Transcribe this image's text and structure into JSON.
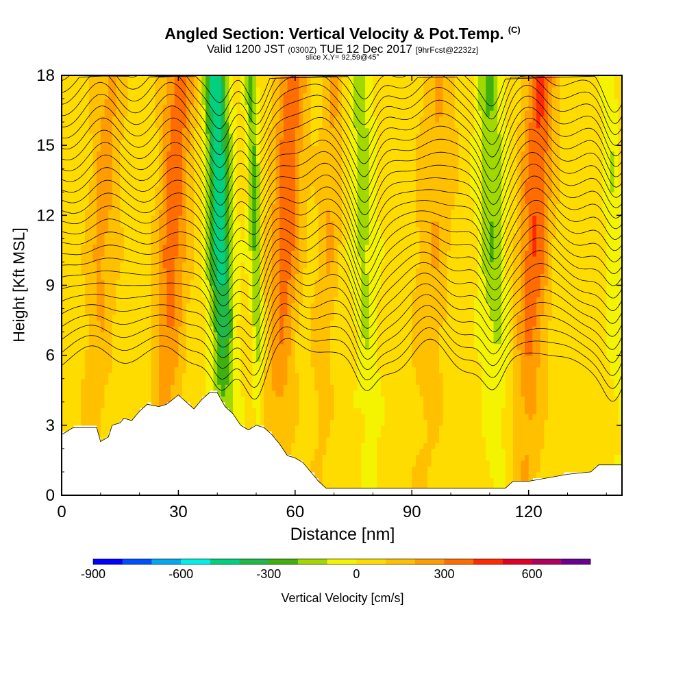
{
  "chart_data": {
    "type": "heatmap",
    "title": "Angled Section: Vertical Velocity & Pot.Temp.",
    "title_unit": "(C)",
    "subtitle_main": "Valid 1200 JST",
    "subtitle_utc": "(0300Z)",
    "subtitle_date": "TUE 12 Dec 2017",
    "subtitle_fcst": "[9hrFcst@2232z]",
    "slice_label": "slice X,Y= 92,59@45°",
    "xlabel": "Distance [nm]",
    "ylabel": "Height [Kft MSL]",
    "xlim": [
      0,
      144
    ],
    "ylim": [
      0,
      18
    ],
    "x_ticks": [
      0,
      30,
      60,
      90,
      120
    ],
    "y_ticks": [
      0,
      3,
      6,
      9,
      12,
      15,
      18
    ],
    "colorbar": {
      "title": "Vertical Velocity [cm/s]",
      "range": [
        -900,
        800
      ],
      "step": 100,
      "tick_labels": [
        "-900",
        "-600",
        "-300",
        "0",
        "300",
        "600"
      ],
      "tick_values": [
        -900,
        -600,
        -300,
        0,
        300,
        600
      ],
      "colors": [
        "#0000ff",
        "#0050ff",
        "#00a8f0",
        "#00f0e8",
        "#00d080",
        "#20b848",
        "#40b010",
        "#a0d800",
        "#f4f400",
        "#ffdc00",
        "#ffc000",
        "#ff9c00",
        "#ff6c00",
        "#ff2a00",
        "#e00028",
        "#b00060",
        "#6a0090"
      ]
    },
    "field": {
      "description_units": "cm/s",
      "updrafts": [
        {
          "x": 10,
          "w": 4,
          "strength": 190
        },
        {
          "x": 28,
          "w": 4,
          "strength": 320
        },
        {
          "x": 57,
          "w": 4,
          "strength": 320
        },
        {
          "x": 68,
          "w": 3,
          "strength": 160
        },
        {
          "x": 95,
          "w": 5,
          "strength": 150
        },
        {
          "x": 121,
          "w": 4,
          "strength": 360
        }
      ],
      "downdrafts": [
        {
          "x": 41,
          "w": 3,
          "strength": -520
        },
        {
          "x": 50,
          "w": 1.5,
          "strength": -260
        },
        {
          "x": 78,
          "w": 3,
          "strength": -180
        },
        {
          "x": 111,
          "w": 3.5,
          "strength": -230
        },
        {
          "x": 142,
          "w": 2,
          "strength": -120
        }
      ]
    },
    "terrain_kft": [
      [
        0,
        2.6
      ],
      [
        3,
        2.9
      ],
      [
        9,
        2.9
      ],
      [
        10,
        2.3
      ],
      [
        12,
        2.5
      ],
      [
        13,
        3.0
      ],
      [
        15,
        3.1
      ],
      [
        16,
        3.3
      ],
      [
        18,
        3.2
      ],
      [
        20,
        3.6
      ],
      [
        22,
        3.9
      ],
      [
        25,
        3.8
      ],
      [
        27,
        3.9
      ],
      [
        30,
        4.3
      ],
      [
        32,
        4.0
      ],
      [
        34,
        3.7
      ],
      [
        36,
        4.1
      ],
      [
        38,
        4.4
      ],
      [
        40,
        4.4
      ],
      [
        42,
        3.8
      ],
      [
        44,
        3.5
      ],
      [
        46,
        3.0
      ],
      [
        48,
        2.8
      ],
      [
        50,
        3.0
      ],
      [
        52,
        2.9
      ],
      [
        54,
        2.6
      ],
      [
        56,
        2.2
      ],
      [
        58,
        1.7
      ],
      [
        60,
        1.6
      ],
      [
        62,
        1.4
      ],
      [
        64,
        1.0
      ],
      [
        66,
        0.6
      ],
      [
        68,
        0.3
      ],
      [
        72,
        0.3
      ],
      [
        80,
        0.3
      ],
      [
        90,
        0.3
      ],
      [
        100,
        0.3
      ],
      [
        114,
        0.3
      ],
      [
        116,
        0.6
      ],
      [
        120,
        0.6
      ],
      [
        130,
        0.9
      ],
      [
        136,
        1.0
      ],
      [
        138,
        1.3
      ],
      [
        144,
        1.3
      ]
    ],
    "theta_isolines": {
      "base_kft": 5.5,
      "spacing_kft": 0.5,
      "count": 26,
      "units": "C"
    }
  }
}
